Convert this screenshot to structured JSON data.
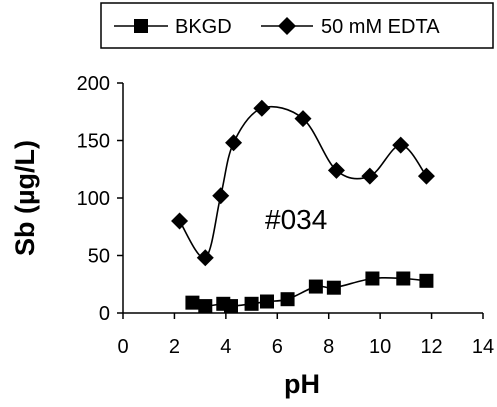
{
  "chart_data": {
    "type": "line",
    "title": "",
    "xlabel": "pH",
    "ylabel": "Sb (µg/L)",
    "xlim": [
      0,
      14
    ],
    "ylim": [
      0,
      200
    ],
    "x_ticks": [
      0,
      2,
      4,
      6,
      8,
      10,
      12,
      14
    ],
    "y_ticks": [
      0,
      50,
      100,
      150,
      200
    ],
    "grid": false,
    "legend_placement": "top",
    "annotation": "#034",
    "series": [
      {
        "name": "BKGD",
        "marker": "square",
        "color": "#000000",
        "points": [
          {
            "x": 2.7,
            "y": 9
          },
          {
            "x": 3.2,
            "y": 6
          },
          {
            "x": 3.9,
            "y": 8
          },
          {
            "x": 4.2,
            "y": 6
          },
          {
            "x": 5.0,
            "y": 8
          },
          {
            "x": 5.6,
            "y": 10
          },
          {
            "x": 6.4,
            "y": 12
          },
          {
            "x": 7.5,
            "y": 23
          },
          {
            "x": 8.2,
            "y": 22
          },
          {
            "x": 9.7,
            "y": 30
          },
          {
            "x": 10.9,
            "y": 30
          },
          {
            "x": 11.8,
            "y": 28
          }
        ]
      },
      {
        "name": "50 mM EDTA",
        "marker": "diamond",
        "color": "#000000",
        "points": [
          {
            "x": 2.2,
            "y": 80
          },
          {
            "x": 3.2,
            "y": 48
          },
          {
            "x": 3.8,
            "y": 102
          },
          {
            "x": 4.3,
            "y": 148
          },
          {
            "x": 5.4,
            "y": 178
          },
          {
            "x": 7.0,
            "y": 169
          },
          {
            "x": 8.3,
            "y": 124
          },
          {
            "x": 9.6,
            "y": 119
          },
          {
            "x": 10.8,
            "y": 146
          },
          {
            "x": 11.8,
            "y": 119
          }
        ]
      }
    ]
  }
}
